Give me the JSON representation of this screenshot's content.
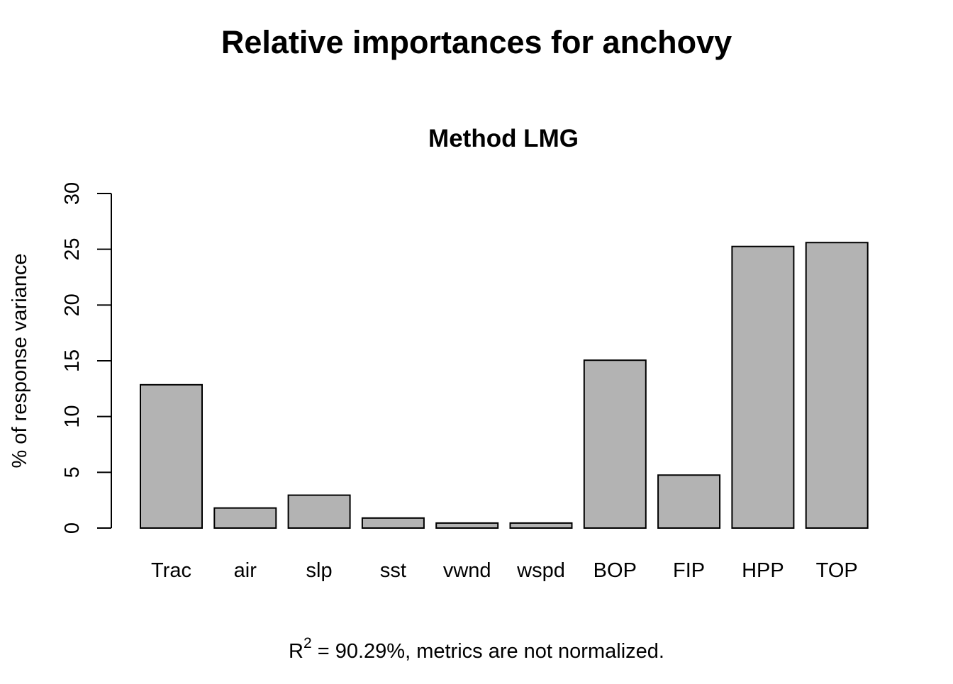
{
  "chart_data": {
    "type": "bar",
    "title": "Relative importances for anchovy",
    "subtitle": "Method LMG",
    "xlabel": "",
    "ylabel": "% of response variance",
    "categories": [
      "Trac",
      "air",
      "slp",
      "sst",
      "vwnd",
      "wspd",
      "BOP",
      "FIP",
      "HPP",
      "TOP"
    ],
    "values": [
      12.85,
      1.8,
      2.95,
      0.9,
      0.45,
      0.45,
      15.05,
      4.75,
      25.25,
      25.6
    ],
    "ylim": [
      0,
      30
    ],
    "yticks": [
      0,
      5,
      10,
      15,
      20,
      25,
      30
    ],
    "ytick_labels": [
      "0",
      "5",
      "10",
      "15",
      "20",
      "25",
      "30"
    ],
    "grid": false,
    "bar_fill": "#b3b3b3",
    "bar_stroke": "#000000",
    "footer": {
      "r_symbol": "R",
      "superscript": "2",
      "text": " = 90.29%, metrics are not normalized."
    }
  }
}
